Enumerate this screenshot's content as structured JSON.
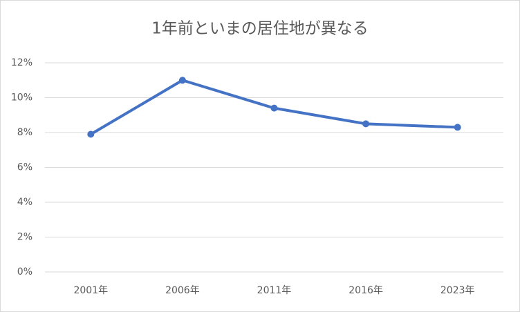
{
  "chart_data": {
    "type": "line",
    "title": "1年前といまの居住地が異なる",
    "categories": [
      "2001年",
      "2006年",
      "2011年",
      "2016年",
      "2023年"
    ],
    "values": [
      7.9,
      11.0,
      9.4,
      8.5,
      8.3
    ],
    "color": "#4472c4",
    "ylim": [
      0,
      12
    ],
    "yticks": [
      {
        "value": 0,
        "label": "0%"
      },
      {
        "value": 2,
        "label": "2%"
      },
      {
        "value": 4,
        "label": "4%"
      },
      {
        "value": 6,
        "label": "6%"
      },
      {
        "value": 8,
        "label": "8%"
      },
      {
        "value": 10,
        "label": "10%"
      },
      {
        "value": 12,
        "label": "12%"
      }
    ],
    "grid": true
  }
}
